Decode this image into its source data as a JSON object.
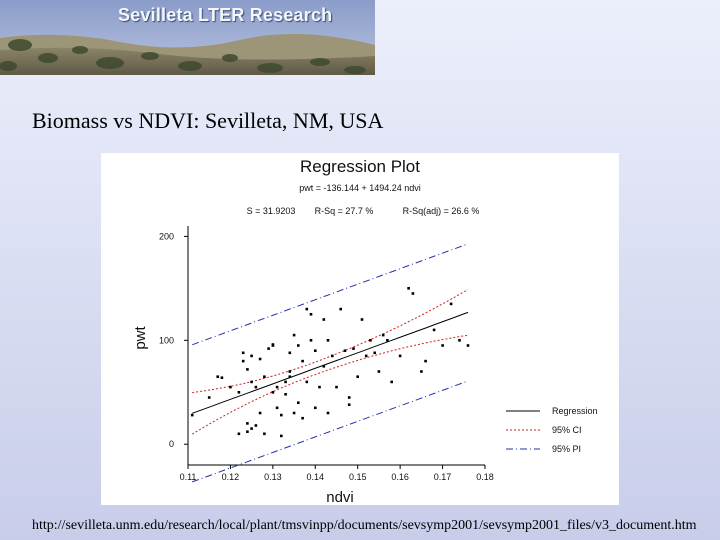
{
  "banner": {
    "title": "Sevilleta LTER Research"
  },
  "slide": {
    "title": "Biomass vs NDVI: Sevilleta, NM, USA"
  },
  "footer": {
    "url": "http://sevilleta.unm.edu/research/local/plant/tmsvinpp/documents/sevsymp2001/sevsymp2001_files/v3_document.htm"
  },
  "chart_data": {
    "type": "scatter",
    "title": "Regression Plot",
    "subtitle": "pwt = -136.144 + 1494.24 ndvi",
    "stats": [
      "S = 31.9203",
      "R-Sq = 27.7 %",
      "R-Sq(adj) = 26.6 %"
    ],
    "xlabel": "ndvi",
    "ylabel": "pwt",
    "xlim": [
      0.11,
      0.18
    ],
    "ylim": [
      -20,
      210
    ],
    "xticks": [
      "0.11",
      "0.12",
      "0.13",
      "0.14",
      "0.15",
      "0.16",
      "0.17",
      "0.18"
    ],
    "yticks": [
      {
        "value": 0,
        "label": "0"
      },
      {
        "value": 100,
        "label": "100"
      },
      {
        "value": 200,
        "label": "200"
      }
    ],
    "regression": {
      "intercept": -136.144,
      "slope": 1494.24
    },
    "ci_width": [
      20,
      6,
      22
    ],
    "pi_half_width": 66,
    "legend": {
      "position": "bottom-right",
      "entries": [
        {
          "label": "Regression",
          "style": "solid",
          "color": "#000000"
        },
        {
          "label": "95% CI",
          "style": "dotted",
          "color": "#cc2222"
        },
        {
          "label": "95% PI",
          "style": "dashdot",
          "color": "#2233aa"
        }
      ]
    },
    "points": [
      [
        0.111,
        28
      ],
      [
        0.115,
        45
      ],
      [
        0.117,
        65
      ],
      [
        0.118,
        64
      ],
      [
        0.12,
        55
      ],
      [
        0.122,
        50
      ],
      [
        0.122,
        10
      ],
      [
        0.123,
        88
      ],
      [
        0.123,
        80
      ],
      [
        0.124,
        72
      ],
      [
        0.124,
        20
      ],
      [
        0.124,
        12
      ],
      [
        0.125,
        60
      ],
      [
        0.125,
        85
      ],
      [
        0.125,
        15
      ],
      [
        0.126,
        55
      ],
      [
        0.126,
        18
      ],
      [
        0.127,
        82
      ],
      [
        0.127,
        30
      ],
      [
        0.128,
        65
      ],
      [
        0.128,
        10
      ],
      [
        0.129,
        92
      ],
      [
        0.13,
        96
      ],
      [
        0.13,
        50
      ],
      [
        0.13,
        95
      ],
      [
        0.131,
        35
      ],
      [
        0.131,
        55
      ],
      [
        0.132,
        28
      ],
      [
        0.132,
        8
      ],
      [
        0.133,
        48
      ],
      [
        0.133,
        60
      ],
      [
        0.134,
        88
      ],
      [
        0.134,
        70
      ],
      [
        0.134,
        65
      ],
      [
        0.135,
        30
      ],
      [
        0.135,
        105
      ],
      [
        0.136,
        40
      ],
      [
        0.136,
        95
      ],
      [
        0.137,
        25
      ],
      [
        0.137,
        80
      ],
      [
        0.138,
        130
      ],
      [
        0.138,
        60
      ],
      [
        0.139,
        100
      ],
      [
        0.139,
        125
      ],
      [
        0.14,
        35
      ],
      [
        0.14,
        90
      ],
      [
        0.141,
        55
      ],
      [
        0.142,
        120
      ],
      [
        0.142,
        75
      ],
      [
        0.143,
        30
      ],
      [
        0.143,
        100
      ],
      [
        0.144,
        85
      ],
      [
        0.145,
        55
      ],
      [
        0.146,
        130
      ],
      [
        0.147,
        90
      ],
      [
        0.148,
        45
      ],
      [
        0.148,
        38
      ],
      [
        0.149,
        92
      ],
      [
        0.15,
        65
      ],
      [
        0.151,
        120
      ],
      [
        0.152,
        85
      ],
      [
        0.153,
        100
      ],
      [
        0.154,
        88
      ],
      [
        0.155,
        70
      ],
      [
        0.156,
        105
      ],
      [
        0.157,
        100
      ],
      [
        0.158,
        60
      ],
      [
        0.16,
        85
      ],
      [
        0.162,
        150
      ],
      [
        0.163,
        145
      ],
      [
        0.165,
        70
      ],
      [
        0.166,
        80
      ],
      [
        0.168,
        110
      ],
      [
        0.17,
        95
      ],
      [
        0.172,
        135
      ],
      [
        0.174,
        100
      ],
      [
        0.176,
        95
      ]
    ]
  }
}
